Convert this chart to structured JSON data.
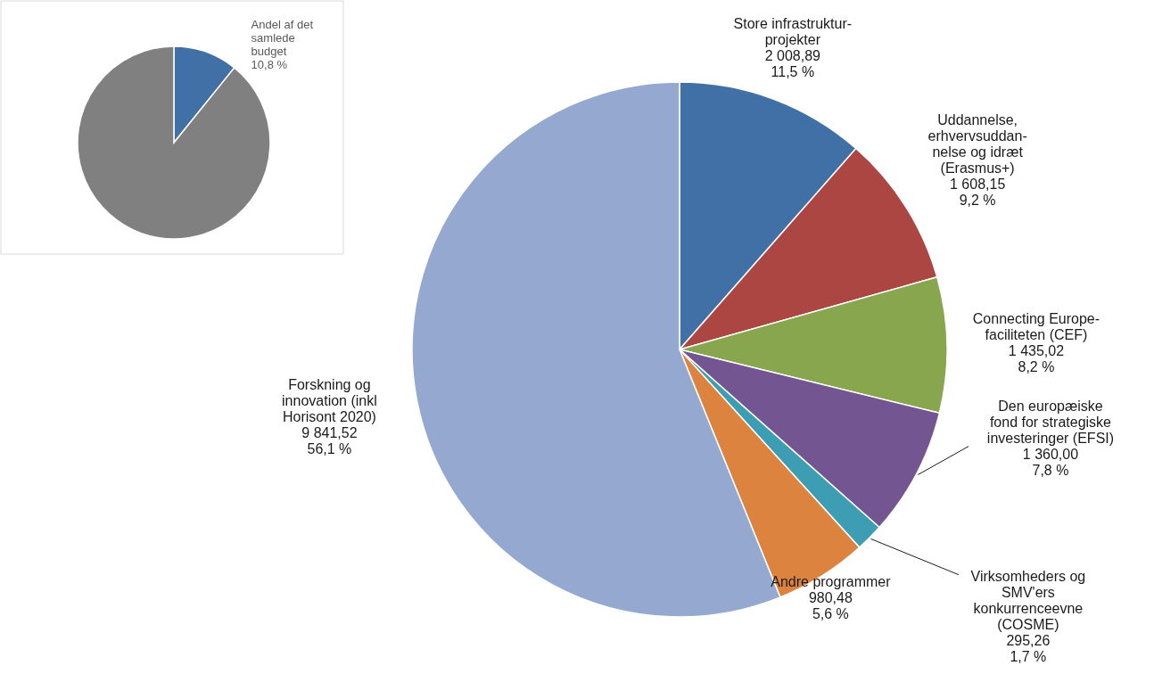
{
  "chart_data": [
    {
      "type": "pie",
      "categories": [
        "Andel af det\nsamlede\nbudget",
        null
      ],
      "values": [
        10.8,
        89.2
      ],
      "colors": [
        "#4170a6",
        "#808080"
      ],
      "value_labels": [
        "10,8 %",
        null
      ]
    },
    {
      "type": "pie",
      "categories": [
        "Store infrastruktur-\nprojekter",
        "Uddannelse,\nerhvervsuddan-\nnelse og idræt\n(Erasmus+)",
        "Connecting Europe-\nfaciliteten (CEF)",
        "Den europæiske\nfond for strategiske\ninvesteringer (EFSI)",
        "Virksomheders og\nSMV'ers\nkonkurrenceevne\n(COSME)",
        "Andre programmer",
        "Forskning og\ninnovation (inkl\nHorisont 2020)"
      ],
      "values": [
        2008.89,
        1608.15,
        1435.02,
        1360.0,
        295.26,
        980.48,
        9841.52
      ],
      "colors": [
        "#4170a6",
        "#ab4643",
        "#88a64d",
        "#735691",
        "#3c9db3",
        "#dc843f",
        "#95a9d0"
      ],
      "value_labels": [
        "2 008,89\n11,5 %",
        "1 608,15\n9,2 %",
        "1 435,02\n8,2 %",
        "1 360,00\n7,8 %",
        "295,26\n1,7 %",
        "980,48\n5,6 %",
        "9 841,52\n56,1 %"
      ]
    }
  ]
}
